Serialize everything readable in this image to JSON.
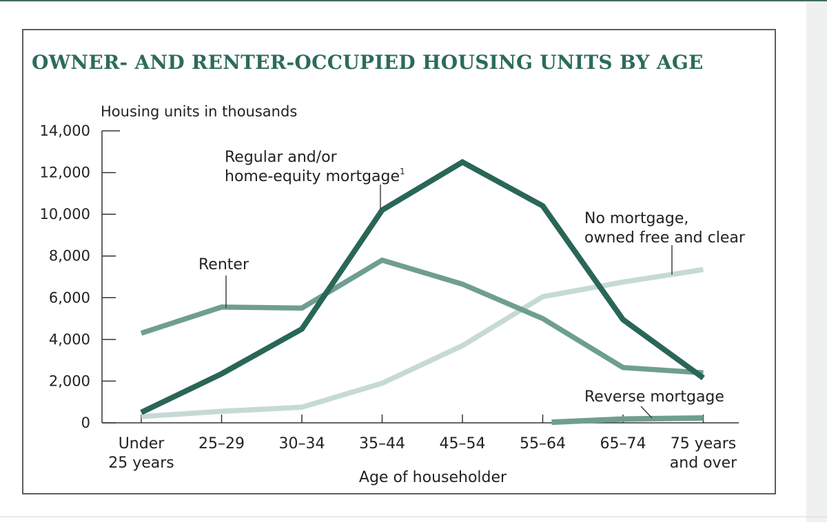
{
  "chart_data": {
    "type": "line",
    "title": "OWNER- AND RENTER-OCCUPIED HOUSING UNITS BY AGE",
    "ylabel": "Housing units in thousands",
    "xlabel": "Age of householder",
    "ylim": [
      0,
      14000
    ],
    "yticks": [
      "14,000",
      "12,000",
      "10,000",
      "8,000",
      "6,000",
      "4,000",
      "2,000",
      "0"
    ],
    "categories": [
      [
        "Under",
        "25 years"
      ],
      [
        "25–29"
      ],
      [
        "30–34"
      ],
      [
        "35–44"
      ],
      [
        "45–54"
      ],
      [
        "55–64"
      ],
      [
        "65–74"
      ],
      [
        "75 years",
        "and over"
      ]
    ],
    "series": [
      {
        "id": "renter",
        "name": "Renter",
        "color": "#6f9e90",
        "values": [
          4300,
          5550,
          5500,
          7800,
          6650,
          5000,
          2650,
          2400
        ]
      },
      {
        "id": "regular",
        "name": "Regular and/or home-equity mortgage",
        "color": "#2a6657",
        "values": [
          500,
          2350,
          4500,
          10200,
          12500,
          10400,
          4950,
          2150
        ]
      },
      {
        "id": "nomortgage",
        "name": "No mortgage, owned free and clear",
        "color": "#c6dad5",
        "values": [
          300,
          550,
          750,
          1900,
          3700,
          6050,
          6750,
          7350
        ]
      },
      {
        "id": "reverse",
        "name": "Reverse mortgage",
        "color": "#6f9e90",
        "values": [
          null,
          null,
          null,
          null,
          null,
          30,
          180,
          230
        ]
      }
    ],
    "annotations": [
      {
        "series": "regular",
        "lines": [
          "Regular and/or",
          "home-equity mortgage"
        ],
        "superscript": "1"
      },
      {
        "series": "renter",
        "lines": [
          "Renter"
        ]
      },
      {
        "series": "nomortgage",
        "lines": [
          "No mortgage,",
          "owned free and clear"
        ]
      },
      {
        "series": "reverse",
        "lines": [
          "Reverse mortgage"
        ]
      }
    ],
    "grid": false,
    "legend": "direct labels"
  }
}
